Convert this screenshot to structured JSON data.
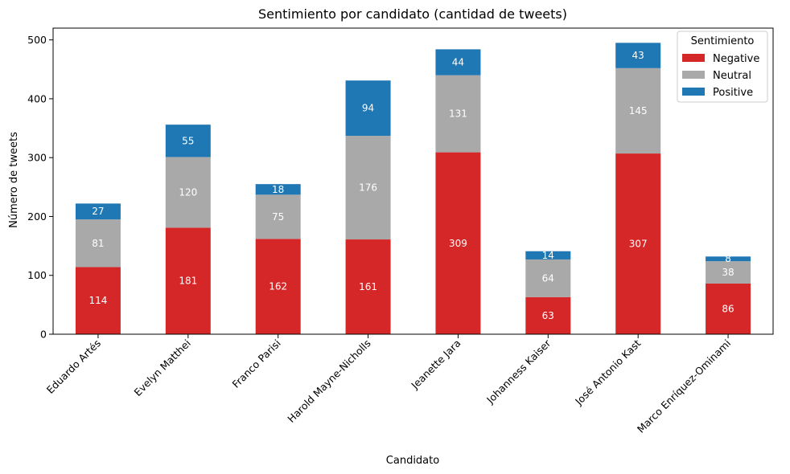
{
  "chart_data": {
    "type": "bar",
    "stacked": true,
    "title": "Sentimiento por candidato (cantidad de tweets)",
    "xlabel": "Candidato",
    "ylabel": "Número de tweets",
    "ylim": [
      0,
      520
    ],
    "yticks": [
      0,
      100,
      200,
      300,
      400,
      500
    ],
    "grid": false,
    "legend": {
      "title": "Sentimiento",
      "position": "top-right"
    },
    "categories": [
      "Eduardo Artés",
      "Evelyn Matthei",
      "Franco Parisi",
      "Harold Mayne-Nicholls",
      "Jeanette Jara",
      "Johanness Kaiser",
      "José Antonio Kast",
      "Marco Enríquez-Ominami"
    ],
    "series": [
      {
        "name": "Negative",
        "color": "#d62728",
        "values": [
          114,
          181,
          162,
          161,
          309,
          63,
          307,
          86
        ]
      },
      {
        "name": "Neutral",
        "color": "#a9a9a9",
        "values": [
          81,
          120,
          75,
          176,
          131,
          64,
          145,
          38
        ]
      },
      {
        "name": "Positive",
        "color": "#1f77b4",
        "values": [
          27,
          55,
          18,
          94,
          44,
          14,
          43,
          8
        ]
      }
    ]
  }
}
